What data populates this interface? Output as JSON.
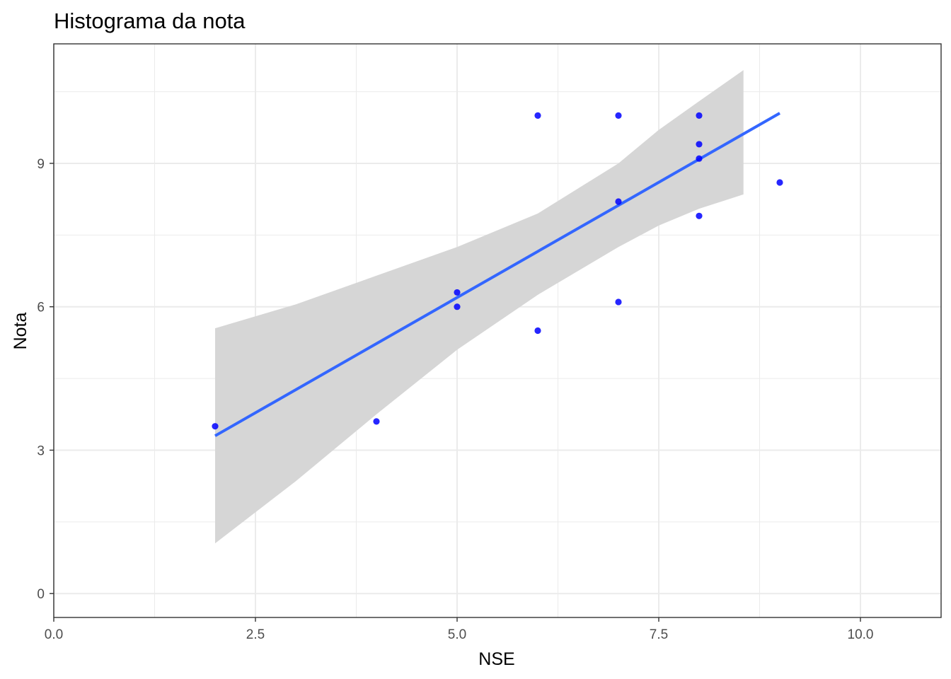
{
  "chart_data": {
    "type": "scatter",
    "title": "Histograma da nota",
    "xlabel": "NSE",
    "ylabel": "Nota",
    "xlim": [
      0,
      11
    ],
    "ylim": [
      -0.5,
      11.5
    ],
    "x_ticks": [
      0,
      2.5,
      5,
      7.5,
      10
    ],
    "x_tick_labels": [
      "0.0",
      "2.5",
      "5.0",
      "7.5",
      "10.0"
    ],
    "y_ticks": [
      0,
      3,
      6,
      9
    ],
    "y_tick_labels": [
      "0",
      "3",
      "6",
      "9"
    ],
    "grid": true,
    "legend": "none",
    "point_color": "#0000ff",
    "points": [
      {
        "x": 2,
        "y": 3.5
      },
      {
        "x": 4,
        "y": 3.6
      },
      {
        "x": 5,
        "y": 6.3
      },
      {
        "x": 5,
        "y": 6.0
      },
      {
        "x": 6,
        "y": 10.0
      },
      {
        "x": 6,
        "y": 5.5
      },
      {
        "x": 7,
        "y": 10.0
      },
      {
        "x": 7,
        "y": 8.2
      },
      {
        "x": 7,
        "y": 6.1
      },
      {
        "x": 8,
        "y": 10.0
      },
      {
        "x": 8,
        "y": 9.4
      },
      {
        "x": 8,
        "y": 9.1
      },
      {
        "x": 8,
        "y": 7.9
      },
      {
        "x": 9,
        "y": 8.6
      }
    ],
    "smooth": {
      "method": "linear",
      "line_color": "#3366ff",
      "band_color": "#d6d6d6",
      "x_start": 2,
      "x_end": 9,
      "y_at_start": 3.3,
      "y_at_end": 10.05
    },
    "confidence_band": [
      {
        "x": 2.0,
        "lower": 1.05,
        "upper": 5.55
      },
      {
        "x": 3.0,
        "lower": 2.35,
        "upper": 6.05
      },
      {
        "x": 4.0,
        "lower": 3.75,
        "upper": 6.65
      },
      {
        "x": 5.0,
        "lower": 5.1,
        "upper": 7.25
      },
      {
        "x": 6.0,
        "lower": 6.25,
        "upper": 7.95
      },
      {
        "x": 7.0,
        "lower": 7.25,
        "upper": 9.0
      },
      {
        "x": 7.5,
        "lower": 7.7,
        "upper": 9.7
      },
      {
        "x": 8.0,
        "lower": 8.05,
        "upper": 10.3
      },
      {
        "x": 8.55,
        "lower": 8.35,
        "upper": 10.95
      }
    ]
  }
}
